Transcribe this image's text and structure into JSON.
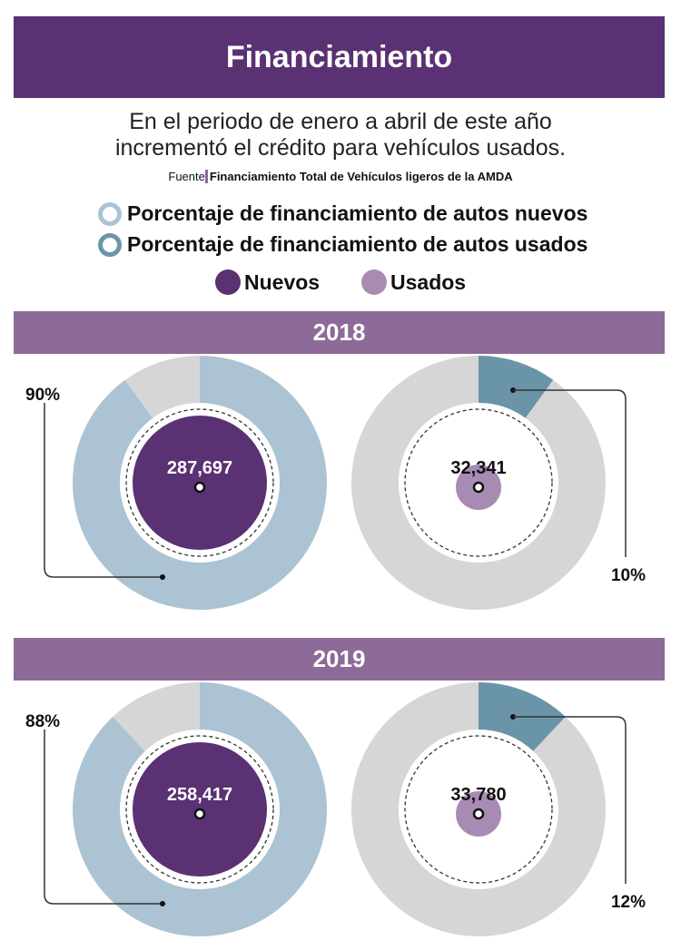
{
  "title": "Financiamiento",
  "subtitle_line1": "En el periodo de enero a abril de este año",
  "subtitle_line2": "incrementó el crédito para vehículos usados.",
  "source_label": "Fuente",
  "source_text": "Financiamiento Total de Vehículos ligeros de la AMDA",
  "legend": {
    "pct_new": "Porcentaje de financiamiento de autos nuevos",
    "pct_used": "Porcentaje de financiamiento de autos usados",
    "new": "Nuevos",
    "used": "Usados"
  },
  "colors": {
    "header": "#5a3172",
    "band": "#8e6a98",
    "nuevos": "#5a3172",
    "usados": "#a88bb3",
    "pct_new": "#abc3d2",
    "pct_used": "#6a95a9",
    "rest": "#d6d6d6"
  },
  "chart_data": [
    {
      "type": "pie",
      "year": "2018",
      "label": "2018",
      "nuevos": {
        "count": "287,697",
        "pct": 90,
        "pct_label": "90%"
      },
      "usados": {
        "count": "32,341",
        "pct": 10,
        "pct_label": "10%"
      }
    },
    {
      "type": "pie",
      "year": "2019",
      "label": "2019",
      "nuevos": {
        "count": "258,417",
        "pct": 88,
        "pct_label": "88%"
      },
      "usados": {
        "count": "33,780",
        "pct": 12,
        "pct_label": "12%"
      }
    }
  ]
}
